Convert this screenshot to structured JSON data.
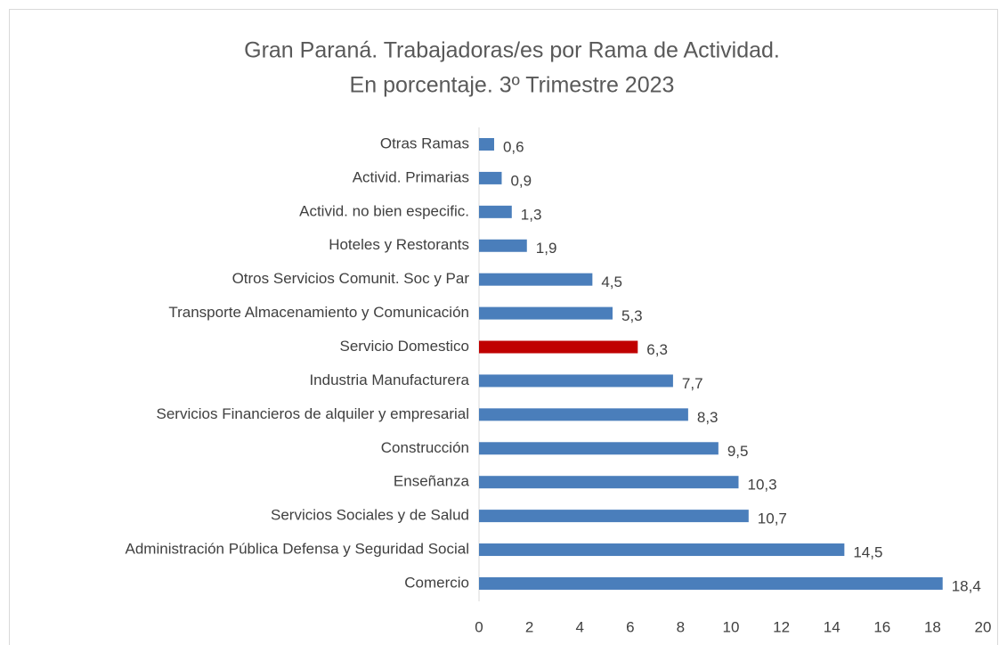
{
  "chart_data": {
    "type": "barh",
    "title": "Gran Paraná. Trabajadoras/es por Rama de Actividad.",
    "subtitle": "En porcentaje. 3º Trimestre 2023",
    "categories": [
      "Otras Ramas",
      "Activid. Primarias",
      "Activid. no bien especific.",
      "Hoteles y Restorants",
      "Otros Servicios Comunit. Soc y Par",
      "Transporte Almacenamiento y Comunicación",
      "Servicio Domestico",
      "Industria Manufacturera",
      "Servicios Financieros de alquiler y empresarial",
      "Construcción",
      "Enseñanza",
      "Servicios Sociales y de Salud",
      "Administración Pública Defensa y Seguridad Social",
      "Comercio"
    ],
    "values": [
      0.6,
      0.9,
      1.3,
      1.9,
      4.5,
      5.3,
      6.3,
      7.7,
      8.3,
      9.5,
      10.3,
      10.7,
      14.5,
      18.4
    ],
    "value_labels": [
      "0,6",
      "0,9",
      "1,3",
      "1,9",
      "4,5",
      "5,3",
      "6,3",
      "7,7",
      "8,3",
      "9,5",
      "10,3",
      "10,7",
      "14,5",
      "18,4"
    ],
    "colors": [
      "#4a7ebb",
      "#4a7ebb",
      "#4a7ebb",
      "#4a7ebb",
      "#4a7ebb",
      "#4a7ebb",
      "#c00000",
      "#4a7ebb",
      "#4a7ebb",
      "#4a7ebb",
      "#4a7ebb",
      "#4a7ebb",
      "#4a7ebb",
      "#4a7ebb"
    ],
    "xlim": [
      0,
      20
    ],
    "xticks": [
      0,
      2,
      4,
      6,
      8,
      10,
      12,
      14,
      16,
      18,
      20
    ],
    "grid": false
  }
}
